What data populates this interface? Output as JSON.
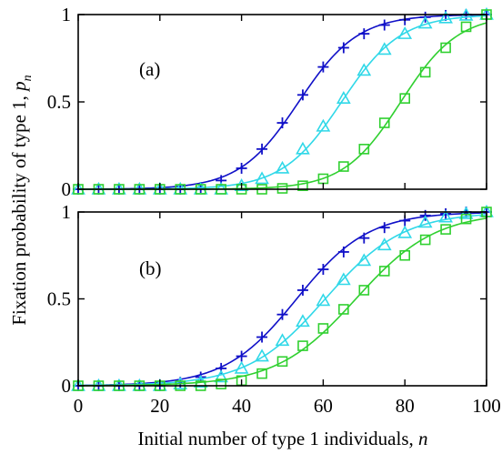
{
  "chart_data": {
    "type": "line",
    "xlabel": "Initial number of type 1 individuals,",
    "xlabel_var": "n",
    "ylabel": "Fixation probability of type 1,",
    "ylabel_var": "p",
    "ylabel_sub": "n",
    "xlim": [
      0,
      100
    ],
    "ylim": [
      0,
      1
    ],
    "x_ticks": [
      "0",
      "20",
      "40",
      "60",
      "80",
      "100"
    ],
    "y_ticks": [
      "0",
      "0.5",
      "1"
    ],
    "grid": false,
    "legend": "none",
    "panels": [
      {
        "tag": "(a)",
        "series": [
          {
            "color": "#1010c8",
            "marker": "plus",
            "x": [
              0,
              5,
              10,
              15,
              20,
              25,
              30,
              35,
              40,
              45,
              50,
              55,
              60,
              65,
              70,
              75,
              80,
              85,
              90,
              95,
              100
            ],
            "values": [
              0,
              0,
              0,
              0,
              0,
              0,
              0.01,
              0.05,
              0.12,
              0.23,
              0.38,
              0.54,
              0.7,
              0.81,
              0.89,
              0.94,
              0.97,
              0.985,
              0.995,
              1.0,
              1.0
            ]
          },
          {
            "color": "#30d8e8",
            "marker": "triangle",
            "x": [
              0,
              5,
              10,
              15,
              20,
              25,
              30,
              35,
              40,
              45,
              50,
              55,
              60,
              65,
              70,
              75,
              80,
              85,
              90,
              95,
              100
            ],
            "values": [
              0,
              0,
              0,
              0,
              0,
              0,
              0,
              0,
              0.02,
              0.06,
              0.12,
              0.23,
              0.36,
              0.52,
              0.68,
              0.8,
              0.89,
              0.95,
              0.98,
              0.995,
              1.0
            ]
          },
          {
            "color": "#30d030",
            "marker": "square",
            "x": [
              0,
              5,
              10,
              15,
              20,
              25,
              30,
              35,
              40,
              45,
              50,
              55,
              60,
              65,
              70,
              75,
              80,
              85,
              90,
              95,
              100
            ],
            "values": [
              0,
              0,
              0,
              0,
              0,
              0,
              0,
              0,
              0,
              0,
              0.005,
              0.02,
              0.06,
              0.13,
              0.23,
              0.38,
              0.52,
              0.67,
              0.81,
              0.93,
              1.0
            ]
          }
        ]
      },
      {
        "tag": "(b)",
        "series": [
          {
            "color": "#1010c8",
            "marker": "plus",
            "x": [
              0,
              5,
              10,
              15,
              20,
              25,
              30,
              35,
              40,
              45,
              50,
              55,
              60,
              65,
              70,
              75,
              80,
              85,
              90,
              95,
              100
            ],
            "values": [
              0,
              0,
              0,
              0,
              0,
              0.02,
              0.05,
              0.1,
              0.17,
              0.28,
              0.41,
              0.55,
              0.67,
              0.77,
              0.85,
              0.91,
              0.95,
              0.98,
              0.99,
              1.0,
              1.0
            ]
          },
          {
            "color": "#30d8e8",
            "marker": "triangle",
            "x": [
              0,
              5,
              10,
              15,
              20,
              25,
              30,
              35,
              40,
              45,
              50,
              55,
              60,
              65,
              70,
              75,
              80,
              85,
              90,
              95,
              100
            ],
            "values": [
              0,
              0,
              0,
              0,
              0,
              0.01,
              0.02,
              0.05,
              0.1,
              0.17,
              0.26,
              0.37,
              0.49,
              0.61,
              0.72,
              0.81,
              0.88,
              0.94,
              0.97,
              0.99,
              1.0
            ]
          },
          {
            "color": "#30d030",
            "marker": "square",
            "x": [
              0,
              5,
              10,
              15,
              20,
              25,
              30,
              35,
              40,
              45,
              50,
              55,
              60,
              65,
              70,
              75,
              80,
              85,
              90,
              95,
              100
            ],
            "values": [
              0,
              0,
              0,
              0,
              0,
              0,
              0,
              0.01,
              0.03,
              0.07,
              0.14,
              0.23,
              0.33,
              0.44,
              0.55,
              0.66,
              0.75,
              0.84,
              0.9,
              0.96,
              1.0
            ]
          }
        ]
      }
    ]
  }
}
